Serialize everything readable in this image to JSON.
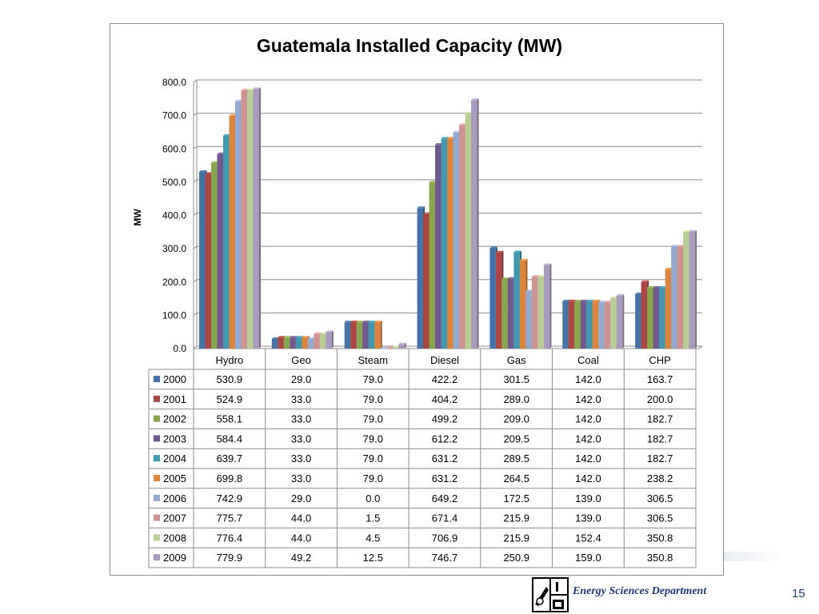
{
  "slide": {
    "footer_text": "Energy Sciences Department",
    "page_number": "15",
    "logo_icon": "energy-sciences-logo-icon"
  },
  "chart_data": {
    "type": "bar",
    "title": "Guatemala Installed Capacity  (MW)",
    "xlabel": "",
    "ylabel": "MW",
    "ylim": [
      0,
      800
    ],
    "yticks": [
      "0.0",
      "100.0",
      "200.0",
      "300.0",
      "400.0",
      "500.0",
      "600.0",
      "700.0",
      "800.0"
    ],
    "grid": true,
    "legend_placement": "data-table",
    "categories": [
      "Hydro",
      "Geo",
      "Steam",
      "Diesel",
      "Gas",
      "Coal",
      "CHP"
    ],
    "series": [
      {
        "name": "2000",
        "color": "#4572a7",
        "values": [
          530.9,
          29.0,
          79.0,
          422.2,
          301.5,
          142.0,
          163.7
        ],
        "labels": [
          "530.9",
          "29.0",
          "79.0",
          "422.2",
          "301.5",
          "142.0",
          "163.7"
        ]
      },
      {
        "name": "2001",
        "color": "#aa4643",
        "values": [
          524.9,
          33.0,
          79.0,
          404.2,
          289.0,
          142.0,
          200.0
        ],
        "labels": [
          "524.9",
          "33.0",
          "79.0",
          "404.2",
          "289.0",
          "142.0",
          "200.0"
        ]
      },
      {
        "name": "2002",
        "color": "#89a54e",
        "values": [
          558.1,
          33.0,
          79.0,
          499.2,
          209.0,
          142.0,
          182.7
        ],
        "labels": [
          "558.1",
          "33.0",
          "79.0",
          "499.2",
          "209.0",
          "142.0",
          "182.7"
        ]
      },
      {
        "name": "2003",
        "color": "#71588f",
        "values": [
          584.4,
          33.0,
          79.0,
          612.2,
          209.5,
          142.0,
          182.7
        ],
        "labels": [
          "584.4",
          "33.0",
          "79.0",
          "612.2",
          "209.5",
          "142.0",
          "182.7"
        ]
      },
      {
        "name": "2004",
        "color": "#4198af",
        "values": [
          639.7,
          33.0,
          79.0,
          631.2,
          289.5,
          142.0,
          182.7
        ],
        "labels": [
          "639.7",
          "33.0",
          "79.0",
          "631.2",
          "289.5",
          "142.0",
          "182.7"
        ]
      },
      {
        "name": "2005",
        "color": "#db843d",
        "values": [
          699.8,
          33.0,
          79.0,
          631.2,
          264.5,
          142.0,
          238.2
        ],
        "labels": [
          "699.8",
          "33.0",
          "79.0",
          "631.2",
          "264.5",
          "142.0",
          "238.2"
        ]
      },
      {
        "name": "2006",
        "color": "#93a9cf",
        "values": [
          742.9,
          29.0,
          0.0,
          649.2,
          172.5,
          139.0,
          306.5
        ],
        "labels": [
          "742.9",
          "29.0",
          "0.0",
          "649.2",
          "172.5",
          "139.0",
          "306.5"
        ]
      },
      {
        "name": "2007",
        "color": "#d19392",
        "values": [
          775.7,
          44.0,
          1.5,
          671.4,
          215.9,
          139.0,
          306.5
        ],
        "labels": [
          "775.7",
          "44.0",
          "1.5",
          "671.4",
          "215.9",
          "139.0",
          "306.5"
        ]
      },
      {
        "name": "2008",
        "color": "#b9cd96",
        "values": [
          776.4,
          44.0,
          4.5,
          706.9,
          215.9,
          152.4,
          350.8
        ],
        "labels": [
          "776.4",
          "44.0",
          "4.5",
          "706.9",
          "215.9",
          "152.4",
          "350.8"
        ]
      },
      {
        "name": "2009",
        "color": "#a99bbd",
        "values": [
          779.9,
          49.2,
          12.5,
          746.7,
          250.9,
          159.0,
          350.8
        ],
        "labels": [
          "779.9",
          "49.2",
          "12.5",
          "746.7",
          "250.9",
          "159.0",
          "350.8"
        ]
      }
    ]
  }
}
